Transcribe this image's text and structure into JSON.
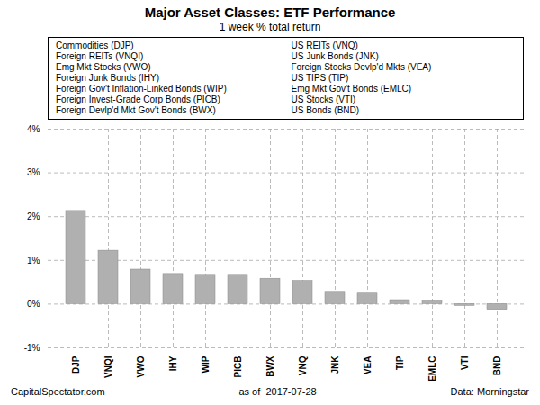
{
  "chart_data": {
    "type": "bar",
    "title": "Major Asset Classes: ETF Performance",
    "subtitle": "1 week % total return",
    "categories": [
      "DJP",
      "VNQI",
      "VWO",
      "IHY",
      "WIP",
      "PICB",
      "BWX",
      "VNQ",
      "JNK",
      "VEA",
      "TIP",
      "EMLC",
      "VTI",
      "BND"
    ],
    "values": [
      2.13,
      1.22,
      0.79,
      0.69,
      0.67,
      0.67,
      0.58,
      0.53,
      0.28,
      0.26,
      0.09,
      0.08,
      -0.04,
      -0.13
    ],
    "color": "#b0b0b0",
    "ylim": [
      -1.0,
      4.0
    ],
    "yticks": [
      {
        "value": -1.0,
        "label": "-1%"
      },
      {
        "value": 0.0,
        "label": "0%"
      },
      {
        "value": 1.0,
        "label": "1%"
      },
      {
        "value": 2.0,
        "label": "2%"
      },
      {
        "value": 3.0,
        "label": "3%"
      },
      {
        "value": 4.0,
        "label": "4%"
      }
    ],
    "grid": true,
    "annotations": [
      [
        "Commodities (DJP)",
        "Foreign REITs (VNQI)",
        "Emg Mkt Stocks (VWO)",
        "Foreign Junk Bonds (IHY)",
        "Foreign Gov't Inflation-Linked Bonds (WIP)",
        "Foreign Invest-Grade Corp Bonds (PICB)",
        "Foreign Devlp'd Mkt Gov't Bonds (BWX)"
      ],
      [
        "US REITs (VNQ)",
        "US Junk Bonds (JNK)",
        "Foreign Stocks Devlp'd Mkts (VEA)",
        "US TIPS (TIP)",
        "Emg Mkt Gov't Bonds (EMLC)",
        "US Stocks (VTI)",
        "US Bonds (BND)"
      ]
    ],
    "footer": [
      "CapitalSpectator.com",
      "as of  2017-07-28",
      "Data: Morningstar"
    ]
  }
}
